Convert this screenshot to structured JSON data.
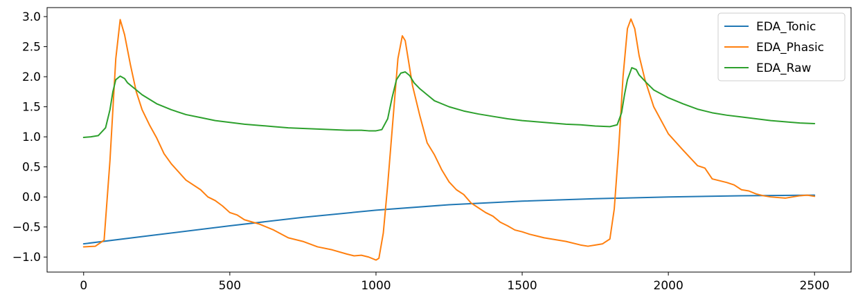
{
  "chart_data": {
    "type": "line",
    "title": "",
    "xlabel": "",
    "ylabel": "",
    "xlim": [
      -125,
      2625
    ],
    "ylim": [
      -1.25,
      3.15
    ],
    "xticks": [
      0,
      500,
      1000,
      1500,
      2000,
      2500
    ],
    "yticks": [
      -1.0,
      -0.5,
      0.0,
      0.5,
      1.0,
      1.5,
      2.0,
      2.5,
      3.0
    ],
    "xtick_labels": [
      "0",
      "500",
      "1000",
      "1500",
      "2000",
      "2500"
    ],
    "ytick_labels": [
      "−1.0",
      "−0.5",
      "0.0",
      "0.5",
      "1.0",
      "1.5",
      "2.0",
      "2.5",
      "3.0"
    ],
    "grid": false,
    "legend_position": "upper-right",
    "series": [
      {
        "name": "EDA_Tonic",
        "color": "#1f77b4",
        "x": [
          0,
          250,
          500,
          750,
          1000,
          1250,
          1500,
          1750,
          2000,
          2250,
          2500
        ],
        "y": [
          -0.78,
          -0.63,
          -0.48,
          -0.34,
          -0.22,
          -0.13,
          -0.07,
          -0.03,
          0.0,
          0.02,
          0.03
        ]
      },
      {
        "name": "EDA_Phasic",
        "color": "#ff7f0e",
        "x": [
          0,
          40,
          70,
          90,
          110,
          125,
          140,
          160,
          180,
          200,
          225,
          250,
          275,
          300,
          350,
          400,
          425,
          450,
          475,
          500,
          525,
          550,
          600,
          650,
          700,
          750,
          800,
          850,
          900,
          925,
          950,
          975,
          1000,
          1010,
          1025,
          1040,
          1055,
          1075,
          1090,
          1100,
          1110,
          1125,
          1150,
          1175,
          1200,
          1225,
          1250,
          1275,
          1300,
          1325,
          1350,
          1375,
          1400,
          1425,
          1450,
          1475,
          1500,
          1525,
          1550,
          1575,
          1600,
          1650,
          1700,
          1725,
          1750,
          1775,
          1800,
          1815,
          1830,
          1845,
          1860,
          1872,
          1885,
          1900,
          1920,
          1950,
          2000,
          2050,
          2100,
          2125,
          2150,
          2175,
          2200,
          2225,
          2250,
          2275,
          2300,
          2325,
          2350,
          2375,
          2400,
          2425,
          2450,
          2475,
          2500
        ],
        "y": [
          -0.83,
          -0.82,
          -0.72,
          0.6,
          2.3,
          2.95,
          2.7,
          2.2,
          1.75,
          1.45,
          1.2,
          0.98,
          0.72,
          0.55,
          0.28,
          0.12,
          0.0,
          -0.06,
          -0.15,
          -0.26,
          -0.3,
          -0.38,
          -0.45,
          -0.55,
          -0.68,
          -0.74,
          -0.83,
          -0.88,
          -0.95,
          -0.98,
          -0.97,
          -1.0,
          -1.05,
          -1.02,
          -0.6,
          0.2,
          1.1,
          2.3,
          2.68,
          2.6,
          2.3,
          1.85,
          1.35,
          0.9,
          0.7,
          0.45,
          0.25,
          0.12,
          0.04,
          -0.1,
          -0.18,
          -0.26,
          -0.32,
          -0.42,
          -0.48,
          -0.55,
          -0.58,
          -0.62,
          -0.65,
          -0.68,
          -0.7,
          -0.74,
          -0.8,
          -0.82,
          -0.8,
          -0.78,
          -0.7,
          -0.2,
          0.8,
          2.0,
          2.8,
          2.96,
          2.8,
          2.35,
          1.95,
          1.5,
          1.05,
          0.78,
          0.52,
          0.48,
          0.3,
          0.27,
          0.24,
          0.2,
          0.12,
          0.1,
          0.05,
          0.02,
          0.0,
          -0.01,
          -0.02,
          0.0,
          0.02,
          0.03,
          0.01
        ]
      },
      {
        "name": "EDA_Raw",
        "color": "#2ca02c",
        "x": [
          0,
          25,
          50,
          75,
          90,
          100,
          110,
          125,
          140,
          150,
          175,
          200,
          250,
          300,
          350,
          400,
          450,
          500,
          550,
          600,
          650,
          700,
          750,
          800,
          850,
          900,
          950,
          975,
          1000,
          1020,
          1040,
          1055,
          1070,
          1085,
          1100,
          1115,
          1130,
          1150,
          1175,
          1200,
          1250,
          1300,
          1350,
          1400,
          1450,
          1500,
          1550,
          1600,
          1650,
          1700,
          1750,
          1800,
          1825,
          1840,
          1850,
          1860,
          1875,
          1890,
          1900,
          1925,
          1950,
          2000,
          2050,
          2100,
          2150,
          2200,
          2250,
          2300,
          2350,
          2400,
          2450,
          2500
        ],
        "y": [
          0.99,
          1.0,
          1.02,
          1.15,
          1.45,
          1.75,
          1.95,
          2.01,
          1.97,
          1.9,
          1.8,
          1.7,
          1.55,
          1.45,
          1.37,
          1.32,
          1.27,
          1.24,
          1.21,
          1.19,
          1.17,
          1.15,
          1.14,
          1.13,
          1.12,
          1.11,
          1.11,
          1.1,
          1.1,
          1.12,
          1.3,
          1.65,
          1.95,
          2.06,
          2.08,
          2.02,
          1.9,
          1.8,
          1.7,
          1.6,
          1.5,
          1.43,
          1.38,
          1.34,
          1.3,
          1.27,
          1.25,
          1.23,
          1.21,
          1.2,
          1.18,
          1.17,
          1.2,
          1.4,
          1.7,
          1.95,
          2.15,
          2.12,
          2.03,
          1.9,
          1.78,
          1.65,
          1.55,
          1.46,
          1.4,
          1.36,
          1.33,
          1.3,
          1.27,
          1.25,
          1.23,
          1.22
        ]
      }
    ]
  }
}
